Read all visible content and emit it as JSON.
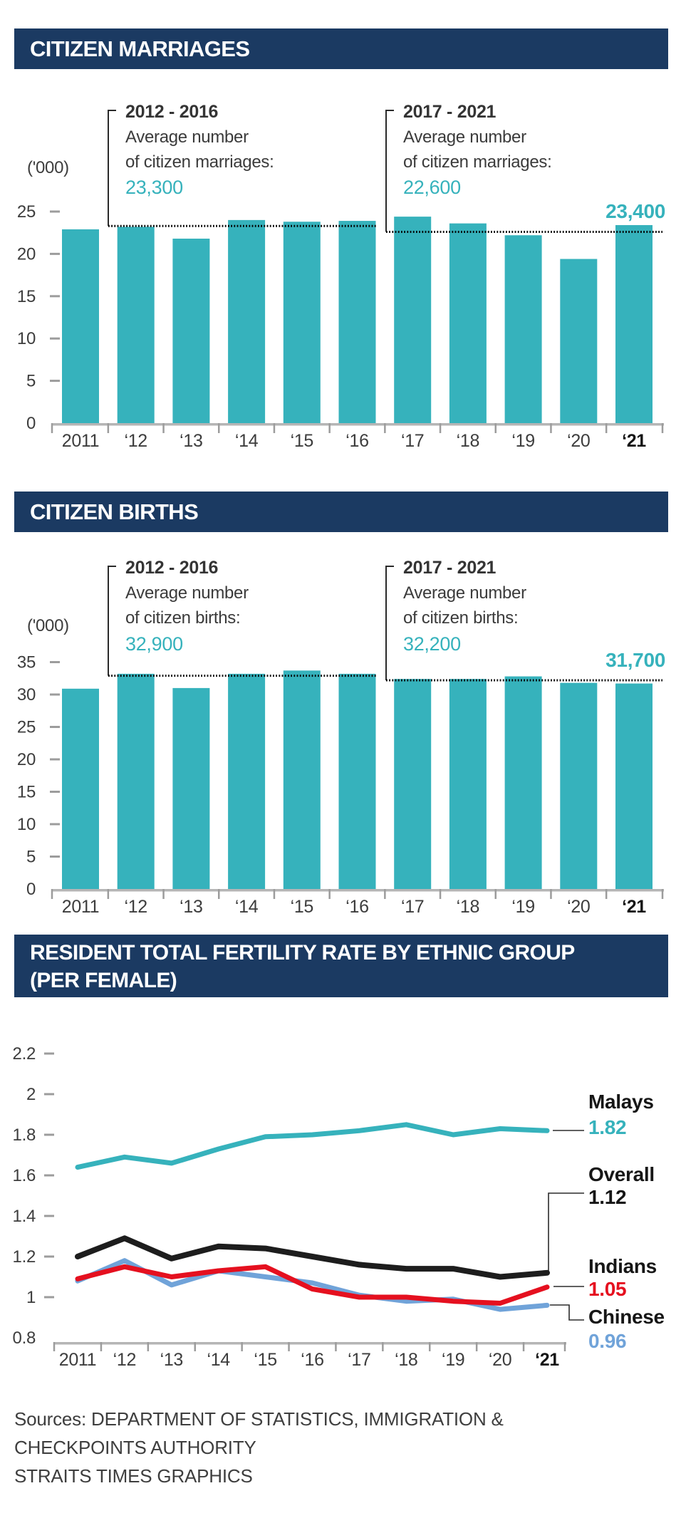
{
  "headers": {
    "marriages": "CITIZEN MARRIAGES",
    "births": "CITIZEN BIRTHS",
    "tfr_line1": "RESIDENT TOTAL FERTILITY RATE BY ETHNIC GROUP",
    "tfr_line2": "(PER FEMALE)"
  },
  "footer": {
    "line1": "Sources: DEPARTMENT OF STATISTICS, IMMIGRATION &",
    "line2": "CHECKPOINTS AUTHORITY",
    "line3": "STRAITS TIMES GRAPHICS"
  },
  "colors": {
    "navy": "#1b3a62",
    "teal": "#36b2bc",
    "red": "#e5101f",
    "blue": "#70a3d9",
    "black_line": "#1d1d1d",
    "text_dark": "#3b3b3b",
    "axis": "#b5b5b5",
    "tick": "#9c9c9c"
  },
  "chart_data": [
    {
      "type": "bar",
      "title": "CITIZEN MARRIAGES",
      "unit_label": "('000)",
      "categories": [
        "2011",
        "‘12",
        "‘13",
        "‘14",
        "‘15",
        "‘16",
        "‘17",
        "‘18",
        "‘19",
        "‘20",
        "‘21"
      ],
      "values": [
        22.9,
        23.2,
        21.8,
        24.0,
        23.8,
        23.9,
        24.4,
        23.6,
        22.2,
        19.4,
        23.4
      ],
      "ylim": [
        0,
        25
      ],
      "yticks": [
        0,
        5,
        10,
        15,
        20,
        25
      ],
      "bar_color": "#36b2bc",
      "last_value_label": "23,400",
      "annotations": [
        {
          "period": "2012 - 2016",
          "line1": "Average number",
          "line2": "of citizen marriages:",
          "value_label": "23,300",
          "value": 23.3
        },
        {
          "period": "2017 - 2021",
          "line1": "Average number",
          "line2": "of citizen marriages:",
          "value_label": "22,600",
          "value": 22.6
        }
      ]
    },
    {
      "type": "bar",
      "title": "CITIZEN BIRTHS",
      "unit_label": "('000)",
      "categories": [
        "2011",
        "‘12",
        "‘13",
        "‘14",
        "‘15",
        "‘16",
        "‘17",
        "‘18",
        "‘19",
        "‘20",
        "‘21"
      ],
      "values": [
        30.9,
        33.2,
        31.0,
        33.2,
        33.7,
        33.2,
        32.4,
        32.4,
        32.8,
        31.8,
        31.7
      ],
      "ylim": [
        0,
        35
      ],
      "yticks": [
        0,
        5,
        10,
        15,
        20,
        25,
        30,
        35
      ],
      "bar_color": "#36b2bc",
      "last_value_label": "31,700",
      "annotations": [
        {
          "period": "2012 - 2016",
          "line1": "Average number",
          "line2": "of citizen births:",
          "value_label": "32,900",
          "value": 32.9
        },
        {
          "period": "2017 - 2021",
          "line1": "Average number",
          "line2": "of citizen births:",
          "value_label": "32,200",
          "value": 32.2
        }
      ]
    },
    {
      "type": "line",
      "title": "RESIDENT TOTAL FERTILITY RATE BY ETHNIC GROUP (PER FEMALE)",
      "x_labels": [
        "2011",
        "‘12",
        "‘13",
        "‘14",
        "‘15",
        "‘16",
        "‘17",
        "‘18",
        "‘19",
        "‘20",
        "‘21"
      ],
      "ylim": [
        0.8,
        2.2
      ],
      "yticks": [
        0.8,
        1,
        1.2,
        1.4,
        1.6,
        1.8,
        2,
        2.2
      ],
      "series": [
        {
          "name": "Malays",
          "color": "#36b2bc",
          "end_label": "1.82",
          "values": [
            1.64,
            1.69,
            1.66,
            1.73,
            1.79,
            1.8,
            1.82,
            1.85,
            1.8,
            1.83,
            1.82
          ]
        },
        {
          "name": "Overall",
          "color": "#1d1d1d",
          "end_label": "1.12",
          "values": [
            1.2,
            1.29,
            1.19,
            1.25,
            1.24,
            1.2,
            1.16,
            1.14,
            1.14,
            1.1,
            1.12
          ]
        },
        {
          "name": "Indians",
          "color": "#e5101f",
          "end_label": "1.05",
          "values": [
            1.09,
            1.15,
            1.1,
            1.13,
            1.15,
            1.04,
            1.0,
            1.0,
            0.98,
            0.97,
            1.05
          ]
        },
        {
          "name": "Chinese",
          "color": "#70a3d9",
          "end_label": "0.96",
          "values": [
            1.08,
            1.18,
            1.06,
            1.13,
            1.1,
            1.07,
            1.01,
            0.98,
            0.99,
            0.94,
            0.96
          ]
        }
      ]
    }
  ]
}
